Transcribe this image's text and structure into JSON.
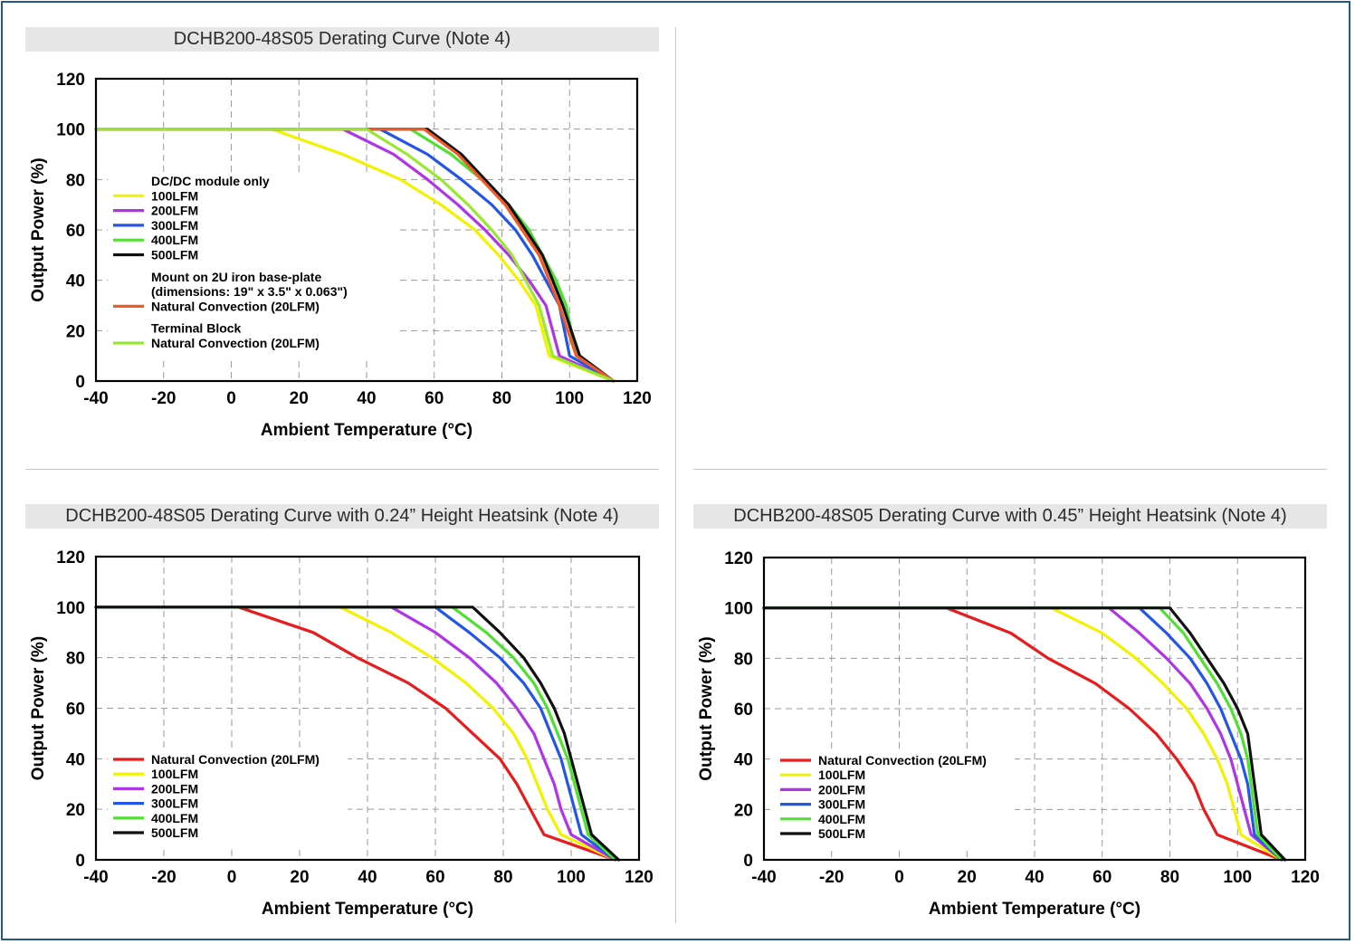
{
  "chart_data": [
    {
      "type": "line",
      "title": "DCHB200-48S05 Derating Curve (Note 4)",
      "xlabel": "Ambient Temperature (°C)",
      "ylabel": "Output Power (%)",
      "xlim": [
        -40,
        120
      ],
      "ylim": [
        0,
        120
      ],
      "xticks": [
        "-40",
        "-20",
        "0",
        "20",
        "40",
        "60",
        "80",
        "100",
        "120"
      ],
      "yticks": [
        "0",
        "20",
        "40",
        "60",
        "80",
        "100",
        "120"
      ],
      "grid": true,
      "legend_position": "left",
      "legend": [
        {
          "kind": "heading",
          "text": "DC/DC module only"
        },
        {
          "kind": "entry",
          "text": "100LFM",
          "series": 0
        },
        {
          "kind": "entry",
          "text": "200LFM",
          "series": 1
        },
        {
          "kind": "entry",
          "text": "300LFM",
          "series": 2
        },
        {
          "kind": "entry",
          "text": "400LFM",
          "series": 3
        },
        {
          "kind": "entry",
          "text": "500LFM",
          "series": 4
        },
        {
          "kind": "heading",
          "text": "Mount on 2U iron base-plate"
        },
        {
          "kind": "heading",
          "text": "(dimensions: 19\" x 3.5\" x 0.063\")"
        },
        {
          "kind": "entry",
          "text": "Natural Convection (20LFM)",
          "series": 5
        },
        {
          "kind": "heading",
          "text": "Terminal Block"
        },
        {
          "kind": "entry",
          "text": "Natural Convection (20LFM)",
          "series": 6
        }
      ],
      "series": [
        {
          "name": "100LFM",
          "color": "#f2f200",
          "x": [
            -40,
            12,
            33,
            50,
            62,
            72,
            79,
            85,
            90,
            94,
            113
          ],
          "y": [
            100,
            100,
            90,
            80,
            70,
            60,
            50,
            40,
            30,
            10,
            0
          ]
        },
        {
          "name": "200LFM",
          "color": "#b033e8",
          "x": [
            -40,
            33,
            48,
            58,
            67,
            75,
            82,
            88,
            93,
            97,
            113
          ],
          "y": [
            100,
            100,
            90,
            80,
            70,
            60,
            50,
            40,
            30,
            10,
            0
          ]
        },
        {
          "name": "300LFM",
          "color": "#2356e8",
          "x": [
            -40,
            44,
            58,
            68,
            77,
            84,
            89,
            93,
            97,
            100,
            113
          ],
          "y": [
            100,
            100,
            90,
            80,
            70,
            60,
            50,
            40,
            30,
            10,
            0
          ]
        },
        {
          "name": "400LFM",
          "color": "#4fe031",
          "x": [
            -40,
            53,
            65,
            74,
            82,
            88,
            92,
            96,
            99,
            102,
            113
          ],
          "y": [
            100,
            100,
            90,
            80,
            70,
            60,
            50,
            40,
            30,
            10,
            0
          ]
        },
        {
          "name": "500LFM",
          "color": "#111111",
          "x": [
            -40,
            58,
            68,
            75,
            82,
            87,
            92,
            95,
            98,
            103,
            113
          ],
          "y": [
            100,
            100,
            90,
            80,
            70,
            60,
            50,
            40,
            30,
            10,
            0
          ]
        },
        {
          "name": "Natural Convection (20LFM)",
          "color": "#f05a28",
          "x": [
            -40,
            57,
            67,
            74,
            81,
            86,
            91,
            94,
            97,
            102,
            113
          ],
          "y": [
            100,
            100,
            90,
            80,
            70,
            60,
            50,
            40,
            30,
            10,
            0
          ]
        },
        {
          "name": "Natural Convection (20LFM)",
          "color": "#98e832",
          "x": [
            -40,
            40,
            52,
            62,
            70,
            77,
            83,
            87,
            91,
            95,
            113
          ],
          "y": [
            100,
            100,
            90,
            80,
            70,
            60,
            50,
            40,
            30,
            10,
            0
          ]
        }
      ]
    },
    {
      "type": "line",
      "title": "DCHB200-48S05 Derating Curve with 0.24” Height Heatsink (Note 4)",
      "xlabel": "Ambient Temperature (°C)",
      "ylabel": "Output Power (%)",
      "xlim": [
        -40,
        120
      ],
      "ylim": [
        0,
        120
      ],
      "xticks": [
        "-40",
        "-20",
        "0",
        "20",
        "40",
        "60",
        "80",
        "100",
        "120"
      ],
      "yticks": [
        "0",
        "20",
        "40",
        "60",
        "80",
        "100",
        "120"
      ],
      "grid": true,
      "legend_position": "bottom-left",
      "legend": [
        {
          "kind": "entry",
          "text": "Natural Convection (20LFM)",
          "series": 0
        },
        {
          "kind": "entry",
          "text": "100LFM",
          "series": 1
        },
        {
          "kind": "entry",
          "text": "200LFM",
          "series": 2
        },
        {
          "kind": "entry",
          "text": "300LFM",
          "series": 3
        },
        {
          "kind": "entry",
          "text": "400LFM",
          "series": 4
        },
        {
          "kind": "entry",
          "text": "500LFM",
          "series": 5
        }
      ],
      "series": [
        {
          "name": "Natural Convection (20LFM)",
          "color": "#e81c1c",
          "x": [
            -40,
            2,
            24,
            37,
            52,
            63,
            71,
            79,
            84,
            88,
            92,
            113
          ],
          "y": [
            100,
            100,
            90,
            80,
            70,
            60,
            50,
            40,
            30,
            20,
            10,
            0
          ]
        },
        {
          "name": "100LFM",
          "color": "#f2f200",
          "x": [
            -40,
            32,
            47,
            59,
            69,
            77,
            83,
            87,
            90,
            93,
            97,
            113
          ],
          "y": [
            100,
            100,
            90,
            80,
            70,
            60,
            50,
            40,
            30,
            20,
            10,
            0
          ]
        },
        {
          "name": "200LFM",
          "color": "#b033e8",
          "x": [
            -40,
            47,
            60,
            70,
            78,
            84,
            89,
            92,
            95,
            97,
            100,
            113
          ],
          "y": [
            100,
            100,
            90,
            80,
            70,
            60,
            50,
            40,
            30,
            20,
            10,
            0
          ]
        },
        {
          "name": "300LFM",
          "color": "#2356e8",
          "x": [
            -40,
            60,
            70,
            79,
            86,
            91,
            94,
            97,
            99,
            101,
            103,
            113
          ],
          "y": [
            100,
            100,
            90,
            80,
            70,
            60,
            50,
            40,
            30,
            20,
            10,
            0
          ]
        },
        {
          "name": "400LFM",
          "color": "#4fe031",
          "x": [
            -40,
            65,
            75,
            83,
            89,
            93,
            96,
            99,
            101,
            103,
            105,
            113
          ],
          "y": [
            100,
            100,
            90,
            80,
            70,
            60,
            50,
            40,
            30,
            20,
            10,
            0
          ]
        },
        {
          "name": "500LFM",
          "color": "#111111",
          "x": [
            -40,
            71,
            79,
            86,
            91,
            95,
            98,
            100,
            102,
            104,
            106,
            114
          ],
          "y": [
            100,
            100,
            90,
            80,
            70,
            60,
            50,
            40,
            30,
            20,
            10,
            0
          ]
        }
      ]
    },
    {
      "type": "line",
      "title": "DCHB200-48S05 Derating Curve with 0.45” Height Heatsink (Note 4)",
      "xlabel": "Ambient Temperature (°C)",
      "ylabel": "Output Power (%)",
      "xlim": [
        -40,
        120
      ],
      "ylim": [
        0,
        120
      ],
      "xticks": [
        "-40",
        "-20",
        "0",
        "20",
        "40",
        "60",
        "80",
        "100",
        "120"
      ],
      "yticks": [
        "0",
        "20",
        "40",
        "60",
        "80",
        "100",
        "120"
      ],
      "grid": true,
      "legend_position": "bottom-left",
      "legend": [
        {
          "kind": "entry",
          "text": "Natural Convection (20LFM)",
          "series": 0
        },
        {
          "kind": "entry",
          "text": "100LFM",
          "series": 1
        },
        {
          "kind": "entry",
          "text": "200LFM",
          "series": 2
        },
        {
          "kind": "entry",
          "text": "300LFM",
          "series": 3
        },
        {
          "kind": "entry",
          "text": "400LFM",
          "series": 4
        },
        {
          "kind": "entry",
          "text": "500LFM",
          "series": 5
        }
      ],
      "series": [
        {
          "name": "Natural Convection (20LFM)",
          "color": "#e81c1c",
          "x": [
            -40,
            14,
            33,
            44,
            58,
            68,
            76,
            82,
            87,
            90,
            94,
            113
          ],
          "y": [
            100,
            100,
            90,
            80,
            70,
            60,
            50,
            40,
            30,
            20,
            10,
            0
          ]
        },
        {
          "name": "100LFM",
          "color": "#f2f200",
          "x": [
            -40,
            45,
            60,
            70,
            78,
            85,
            90,
            94,
            97,
            99,
            101,
            113
          ],
          "y": [
            100,
            100,
            90,
            80,
            70,
            60,
            50,
            40,
            30,
            20,
            10,
            0
          ]
        },
        {
          "name": "200LFM",
          "color": "#b033e8",
          "x": [
            -40,
            62,
            71,
            79,
            86,
            91,
            95,
            98,
            100,
            102,
            104,
            113
          ],
          "y": [
            100,
            100,
            90,
            80,
            70,
            60,
            50,
            40,
            30,
            20,
            10,
            0
          ]
        },
        {
          "name": "300LFM",
          "color": "#2356e8",
          "x": [
            -40,
            71,
            79,
            86,
            91,
            95,
            98,
            101,
            103,
            104,
            105,
            113
          ],
          "y": [
            100,
            100,
            90,
            80,
            70,
            60,
            50,
            40,
            30,
            20,
            10,
            0
          ]
        },
        {
          "name": "400LFM",
          "color": "#4fe031",
          "x": [
            -40,
            77,
            84,
            89,
            94,
            98,
            101,
            103,
            104,
            105,
            106,
            113
          ],
          "y": [
            100,
            100,
            90,
            80,
            70,
            60,
            50,
            40,
            30,
            20,
            10,
            0
          ]
        },
        {
          "name": "500LFM",
          "color": "#111111",
          "x": [
            -40,
            80,
            86,
            91,
            96,
            100,
            103,
            104,
            105,
            106,
            107,
            114
          ],
          "y": [
            100,
            100,
            90,
            80,
            70,
            60,
            50,
            40,
            30,
            20,
            10,
            0
          ]
        }
      ]
    }
  ]
}
